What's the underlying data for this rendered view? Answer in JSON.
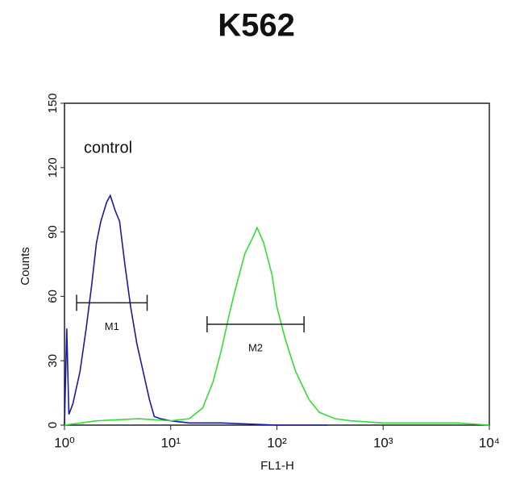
{
  "chart_data": {
    "type": "histogram-line",
    "title": "K562",
    "x_label": "FL1-H",
    "y_label": "Counts",
    "xscale": "log",
    "xlim": [
      1,
      10000
    ],
    "xticks": [
      {
        "value": 1,
        "label": "10⁰"
      },
      {
        "value": 10,
        "label": "10¹"
      },
      {
        "value": 100,
        "label": "10²"
      },
      {
        "value": 1000,
        "label": "10³"
      },
      {
        "value": 10000,
        "label": "10⁴"
      }
    ],
    "ylim": [
      0,
      150
    ],
    "yticks": [
      0,
      30,
      60,
      90,
      120,
      150
    ],
    "series": [
      {
        "name": "control",
        "color": "#1a1aa0",
        "x": [
          1.0,
          1.05,
          1.1,
          1.2,
          1.4,
          1.6,
          1.8,
          2.0,
          2.2,
          2.5,
          2.7,
          3.0,
          3.3,
          3.7,
          4.2,
          4.8,
          5.5,
          6.3,
          7,
          8,
          10,
          15,
          30,
          100,
          300
        ],
        "values": [
          0,
          45,
          5,
          10,
          25,
          45,
          65,
          85,
          95,
          104,
          107,
          100,
          95,
          75,
          55,
          38,
          25,
          12,
          4,
          3,
          2,
          1,
          1,
          0,
          0
        ]
      },
      {
        "color": "#33dd33",
        "x": [
          1,
          2,
          5,
          10,
          15,
          20,
          25,
          30,
          35,
          40,
          50,
          60,
          65,
          75,
          90,
          100,
          120,
          150,
          200,
          250,
          350,
          500,
          1000,
          5000,
          10000
        ],
        "values": [
          0,
          2,
          3,
          2,
          3,
          8,
          20,
          35,
          50,
          62,
          80,
          88,
          92,
          85,
          70,
          55,
          40,
          25,
          12,
          6,
          3,
          2,
          1,
          1,
          0
        ]
      }
    ],
    "markers": [
      {
        "label": "M1",
        "range": [
          1.3,
          6
        ],
        "y": 57
      },
      {
        "label": "M2",
        "range": [
          22,
          180
        ],
        "y": 47
      }
    ]
  }
}
